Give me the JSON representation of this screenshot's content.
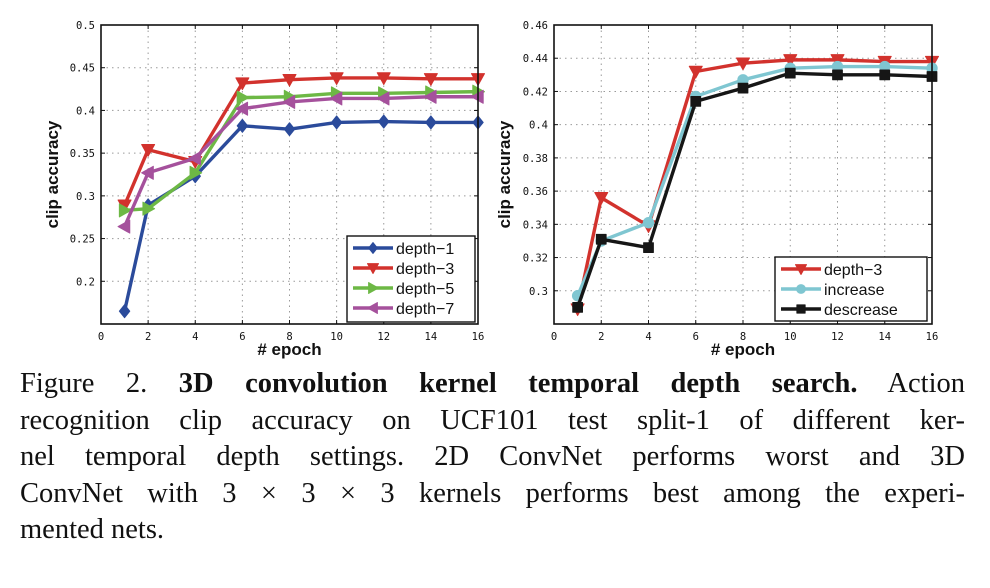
{
  "chart_data": [
    {
      "type": "line",
      "title": "",
      "xlabel": "# epoch",
      "ylabel": "clip accuracy",
      "xlim": [
        0,
        16
      ],
      "ylim": [
        0.15,
        0.5
      ],
      "xticks": [
        "0",
        "2",
        "4",
        "6",
        "8",
        "10",
        "12",
        "14",
        "16"
      ],
      "xtick_values": [
        0,
        2,
        4,
        6,
        8,
        10,
        12,
        14,
        16
      ],
      "yticks": [
        "0.2",
        "0.25",
        "0.3",
        "0.35",
        "0.4",
        "0.45",
        "0.5"
      ],
      "ytick_values": [
        0.2,
        0.25,
        0.3,
        0.35,
        0.4,
        0.45,
        0.5
      ],
      "grid": true,
      "legend_position": "bottom-right",
      "x": [
        1,
        2,
        4,
        6,
        8,
        10,
        12,
        14,
        16
      ],
      "series": [
        {
          "name": "depth−1",
          "color": "#2b4b9b",
          "marker": "diamond",
          "values": [
            0.165,
            0.289,
            0.323,
            0.382,
            0.378,
            0.386,
            0.387,
            0.386,
            0.386
          ]
        },
        {
          "name": "depth−3",
          "color": "#d2322d",
          "marker": "triangle-down",
          "values": [
            0.289,
            0.354,
            0.34,
            0.432,
            0.436,
            0.438,
            0.438,
            0.437,
            0.437
          ]
        },
        {
          "name": "depth−5",
          "color": "#6db845",
          "marker": "triangle-right",
          "values": [
            0.283,
            0.285,
            0.327,
            0.415,
            0.416,
            0.42,
            0.42,
            0.421,
            0.422
          ]
        },
        {
          "name": "depth−7",
          "color": "#a5519c",
          "marker": "triangle-left",
          "values": [
            0.264,
            0.327,
            0.344,
            0.402,
            0.41,
            0.414,
            0.414,
            0.416,
            0.416
          ]
        }
      ]
    },
    {
      "type": "line",
      "title": "",
      "xlabel": "# epoch",
      "ylabel": "clip accuracy",
      "xlim": [
        0,
        16
      ],
      "ylim": [
        0.28,
        0.46
      ],
      "xticks": [
        "0",
        "2",
        "4",
        "6",
        "8",
        "10",
        "12",
        "14",
        "16"
      ],
      "xtick_values": [
        0,
        2,
        4,
        6,
        8,
        10,
        12,
        14,
        16
      ],
      "yticks": [
        "0.3",
        "0.32",
        "0.34",
        "0.36",
        "0.38",
        "0.4",
        "0.42",
        "0.44",
        "0.46"
      ],
      "ytick_values": [
        0.3,
        0.32,
        0.34,
        0.36,
        0.38,
        0.4,
        0.42,
        0.44,
        0.46
      ],
      "grid": true,
      "legend_position": "bottom-right",
      "x": [
        1,
        2,
        4,
        6,
        8,
        10,
        12,
        14,
        16
      ],
      "series": [
        {
          "name": "depth−3",
          "color": "#d2322d",
          "marker": "triangle-down",
          "values": [
            0.289,
            0.356,
            0.339,
            0.432,
            0.437,
            0.439,
            0.439,
            0.438,
            0.438
          ]
        },
        {
          "name": "increase",
          "color": "#7fc6d1",
          "marker": "circle",
          "values": [
            0.297,
            0.33,
            0.341,
            0.417,
            0.427,
            0.434,
            0.435,
            0.435,
            0.434
          ]
        },
        {
          "name": "descrease",
          "color": "#161616",
          "marker": "square",
          "values": [
            0.29,
            0.331,
            0.326,
            0.414,
            0.422,
            0.431,
            0.43,
            0.43,
            0.429
          ]
        }
      ]
    }
  ],
  "caption": {
    "lines": [
      {
        "prefix": "Figure 2. ",
        "bold": "3D convolution kernel temporal depth search.",
        "suffix": " Action"
      },
      {
        "prefix": "recognition clip accuracy on UCF101 test split-1 of different ker-",
        "bold": "",
        "suffix": ""
      },
      {
        "prefix": "nel temporal depth settings.  2D ConvNet performs worst and 3D",
        "bold": "",
        "suffix": ""
      },
      {
        "prefix": "ConvNet with 3 × 3 × 3 kernels performs best among the experi-",
        "bold": "",
        "suffix": ""
      },
      {
        "prefix": "mented nets.",
        "bold": "",
        "suffix": ""
      }
    ]
  }
}
